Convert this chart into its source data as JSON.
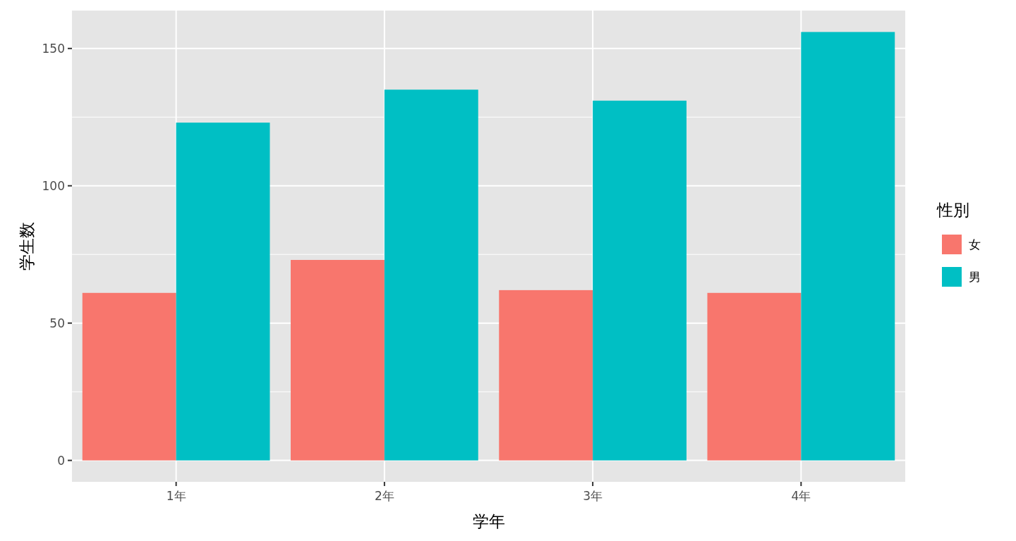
{
  "chart_data": {
    "type": "bar",
    "xlabel": "学年",
    "ylabel": "学生数",
    "legend_title": "性別",
    "categories": [
      "1年",
      "2年",
      "3年",
      "4年"
    ],
    "series": [
      {
        "name": "女",
        "color": "#f8766d",
        "values": [
          61,
          73,
          62,
          61
        ]
      },
      {
        "name": "男",
        "color": "#00bfc4",
        "values": [
          123,
          135,
          131,
          156
        ]
      }
    ],
    "ylim": [
      -7.8,
      163.8
    ],
    "yticks": [
      0,
      50,
      100,
      150
    ],
    "grid": true,
    "legend": "right"
  }
}
